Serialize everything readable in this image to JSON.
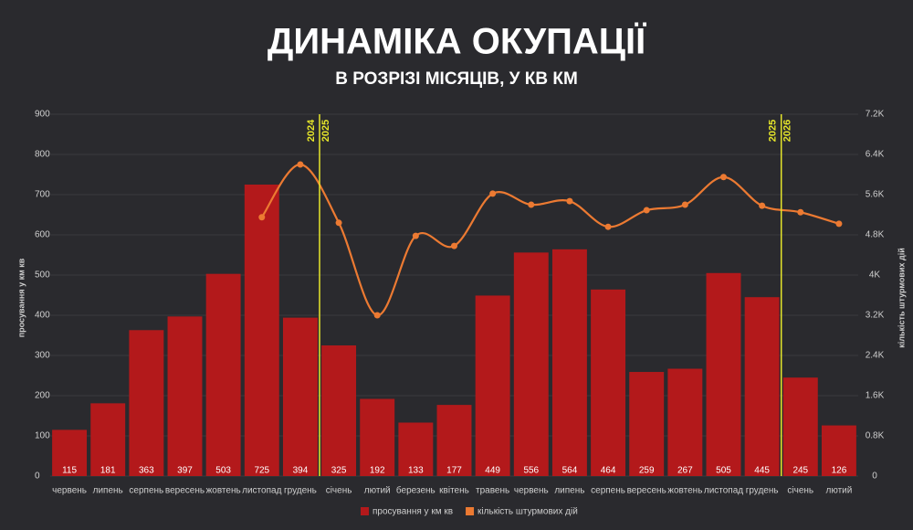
{
  "chart_data": {
    "type": "bar",
    "title": "ДИНАМІКА ОКУПАЦІЇ",
    "subtitle": "В РОЗРІЗІ МІСЯЦІВ, У КВ КМ",
    "y_axis_title": "просування у км кв",
    "y2_axis_title": "кількість штурмових дій",
    "categories": [
      "червень",
      "липень",
      "серпень",
      "вересень",
      "жовтень",
      "листопад",
      "грудень",
      "січень",
      "лютий",
      "березень",
      "квітень",
      "травень",
      "червень",
      "липень",
      "серпень",
      "вересень",
      "жовтень",
      "листопад",
      "грудень",
      "січень",
      "лютий"
    ],
    "series": [
      {
        "name": "просування у км кв",
        "type": "bar",
        "color": "#b3191b",
        "values": [
          115,
          181,
          363,
          397,
          503,
          725,
          394,
          325,
          192,
          133,
          177,
          449,
          556,
          564,
          464,
          259,
          267,
          505,
          445,
          245,
          126
        ]
      },
      {
        "name": "кількість штурмових дій",
        "type": "line",
        "axis": "y2",
        "color": "#ec7a32",
        "values": [
          null,
          null,
          null,
          null,
          null,
          5150,
          6200,
          5040,
          3200,
          4780,
          4580,
          5620,
          5400,
          5470,
          4960,
          5290,
          5400,
          5950,
          5380,
          5250,
          5020
        ]
      }
    ],
    "ylim": [
      0,
      900
    ],
    "yticks": [
      0,
      100,
      200,
      300,
      400,
      500,
      600,
      700,
      800,
      900
    ],
    "y2lim": [
      0,
      7200
    ],
    "y2ticks": [
      0,
      {
        "value": 800,
        "label": "0.8K"
      },
      {
        "value": 1600,
        "label": "1.6K"
      },
      {
        "value": 2400,
        "label": "2.4K"
      },
      {
        "value": 3200,
        "label": "3.2K"
      },
      {
        "value": 4000,
        "label": "4K"
      },
      {
        "value": 4800,
        "label": "4.8K"
      },
      {
        "value": 5600,
        "label": "5.6K"
      },
      {
        "value": 6400,
        "label": "6.4K"
      },
      {
        "value": 7200,
        "label": "7.2K"
      }
    ],
    "year_markers": [
      {
        "category_index": 7,
        "labels": [
          "2024",
          "2025"
        ],
        "color": "#e6e62a"
      },
      {
        "category_index": 19,
        "labels": [
          "2025",
          "2026"
        ],
        "color": "#e6e62a"
      }
    ],
    "grid": true
  }
}
